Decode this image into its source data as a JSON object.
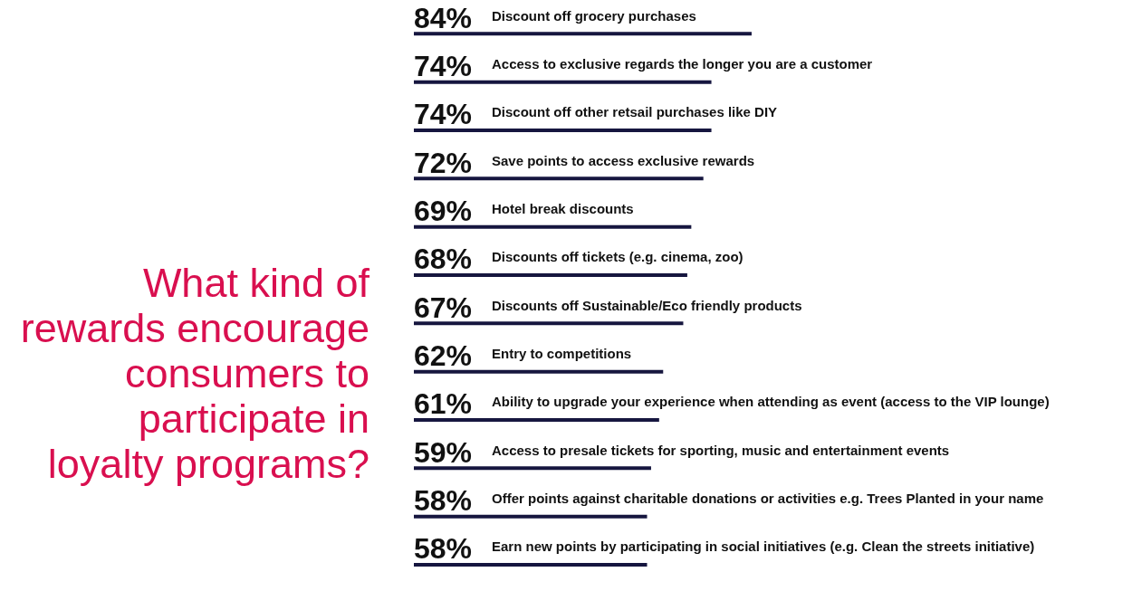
{
  "chart_data": {
    "type": "bar",
    "orientation": "horizontal",
    "title": "What kind of rewards encourage consumers to participate in loyalty programs?",
    "categories": [
      "Discount off grocery purchases",
      "Access to exclusive regards the longer you are a customer",
      "Discount off other retsail purchases like DIY",
      "Save points to access exclusive rewards",
      "Hotel break discounts",
      "Discounts off tickets (e.g. cinema, zoo)",
      "Discounts off Sustainable/Eco friendly products",
      "Entry to competitions",
      "Ability to upgrade your experience when attending as event (access to the VIP lounge)",
      "Access to presale tickets for sporting, music and entertainment events",
      "Offer points against charitable donations or activities e.g. Trees Planted in your name",
      "Earn new points by participating in social initiatives (e.g. Clean the streets initiative)"
    ],
    "values": [
      84,
      74,
      74,
      72,
      69,
      68,
      67,
      62,
      61,
      59,
      58,
      58
    ],
    "value_labels": [
      "84%",
      "74%",
      "74%",
      "72%",
      "69%",
      "68%",
      "67%",
      "62%",
      "61%",
      "59%",
      "58%",
      "58%"
    ],
    "color": "#16163f"
  }
}
